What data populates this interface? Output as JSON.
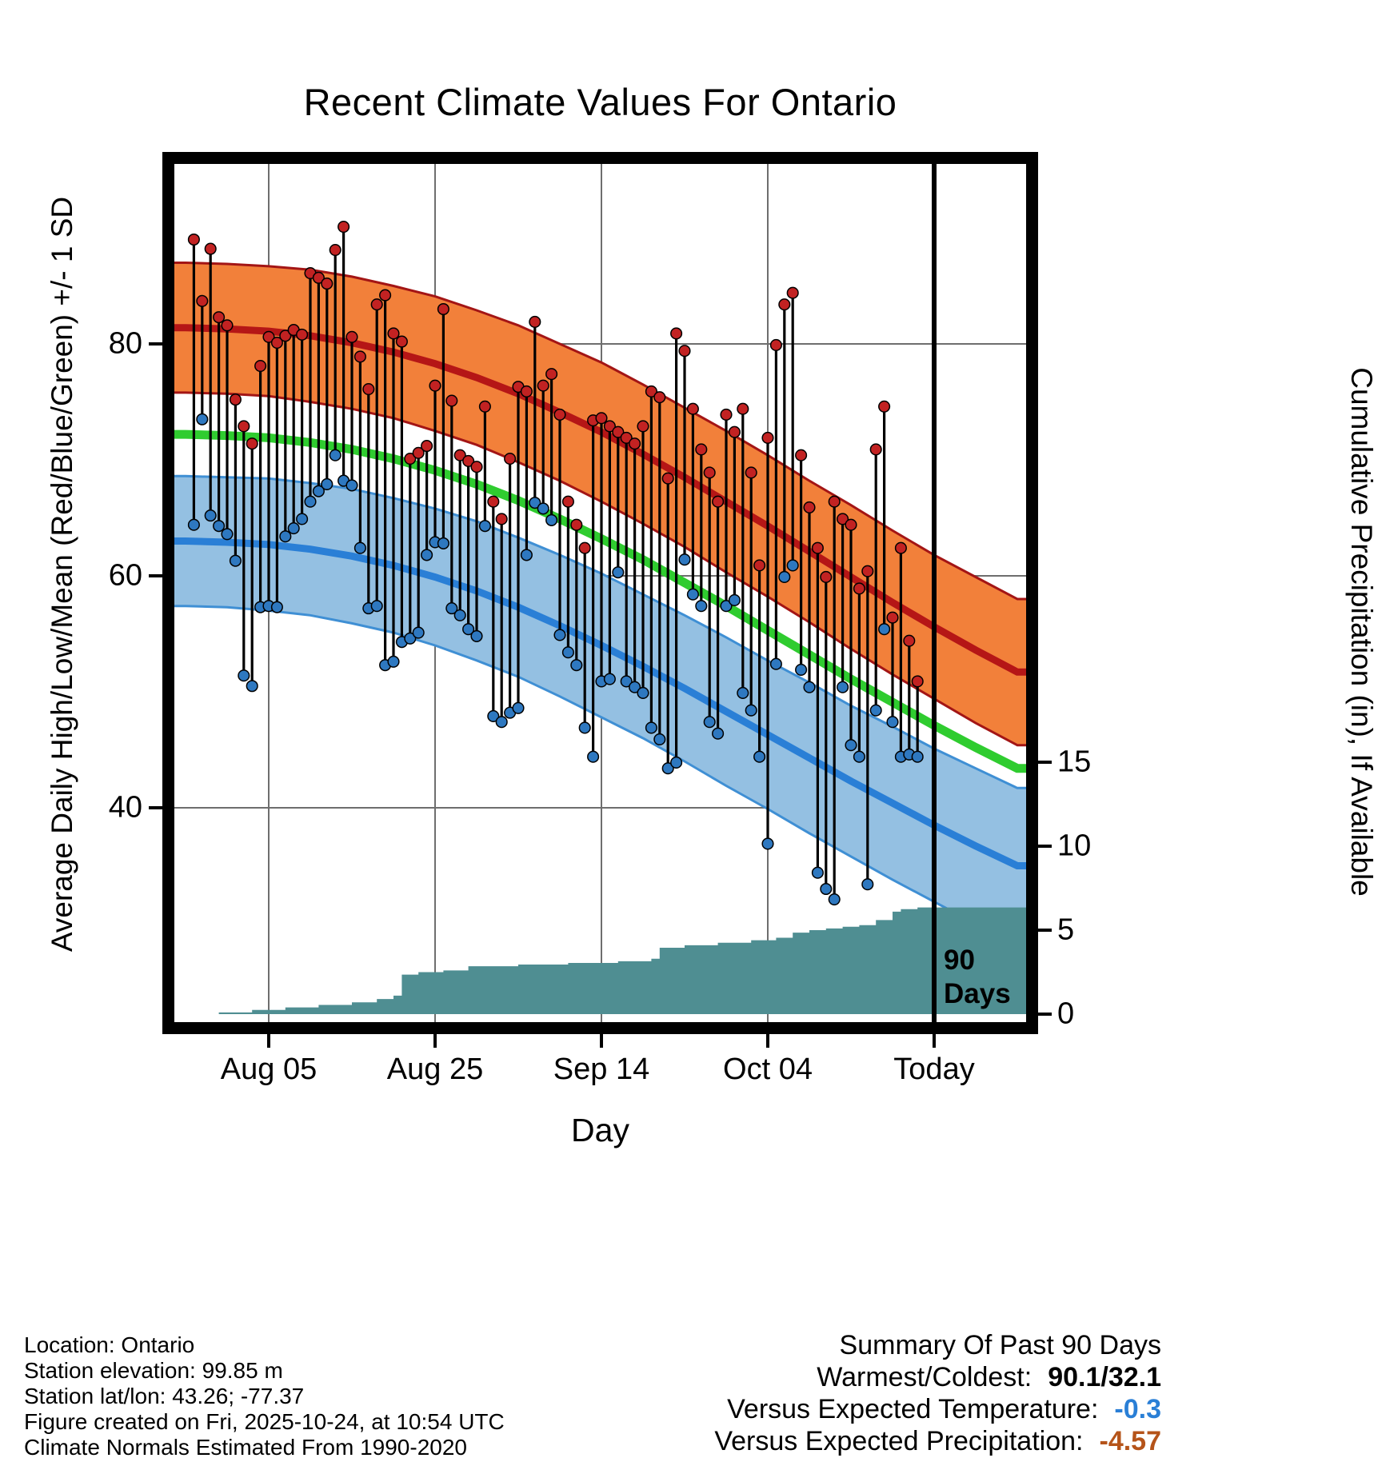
{
  "footer": {
    "lines": [
      "Location: Ontario",
      "Station elevation: 99.85 m",
      "Station lat/lon: 43.26; -77.37",
      "Figure created on Fri, 2025-10-24, at 10:54 UTC",
      "Climate Normals Estimated From 1990-2020"
    ]
  },
  "summary": {
    "title": "Summary Of Past 90 Days",
    "rows": [
      {
        "label": "Warmest/Coldest:",
        "value": "90.1/32.1",
        "color": "#000000"
      },
      {
        "label": "Versus Expected Temperature:",
        "value": "-0.3",
        "color": "#2a7fd6"
      },
      {
        "label": "Versus Expected Precipitation:",
        "value": "-4.57",
        "color": "#b5541a"
      }
    ]
  },
  "chart_data": {
    "type": "line",
    "title": "Recent Climate Values For Ontario",
    "xlabel": "Day",
    "ylabel_left": "Average Daily High/Low/Mean (Red/Blue/Green) +/- 1 SD",
    "ylabel_right": "Cumulative Precipitation (in), If Available",
    "annotations": {
      "value": "90",
      "unit": "Days"
    },
    "x_axis": {
      "tick_days": [
        10,
        30,
        50,
        70,
        90
      ],
      "tick_labels": [
        "Aug 05",
        "Aug 25",
        "Sep 14",
        "Oct 04",
        "Today"
      ],
      "range_days": [
        0,
        101
      ]
    },
    "y_left": {
      "ticks": [
        80,
        60,
        40
      ],
      "range": [
        21.5,
        95.5
      ],
      "units": "deg F"
    },
    "y_right": {
      "ticks": [
        15,
        10,
        5,
        0
      ],
      "range": [
        0,
        51
      ],
      "units": "in"
    },
    "today_day": 90,
    "normals": {
      "days": [
        0,
        5,
        10,
        15,
        20,
        25,
        30,
        35,
        40,
        45,
        50,
        55,
        60,
        65,
        70,
        75,
        80,
        85,
        90,
        95,
        100
      ],
      "high_mean": [
        81.4,
        81.3,
        81.1,
        80.7,
        80.1,
        79.3,
        78.3,
        77.1,
        75.7,
        74.1,
        72.4,
        70.5,
        68.5,
        66.4,
        64.3,
        62.1,
        59.9,
        57.7,
        55.6,
        53.6,
        51.7
      ],
      "high_sd": [
        5.6,
        5.6,
        5.6,
        5.7,
        5.7,
        5.7,
        5.8,
        5.8,
        5.9,
        5.9,
        6.0,
        6.0,
        6.0,
        6.1,
        6.1,
        6.1,
        6.2,
        6.2,
        6.2,
        6.3,
        6.3
      ],
      "low_mean": [
        63.0,
        62.9,
        62.7,
        62.3,
        61.7,
        60.9,
        59.9,
        58.7,
        57.3,
        55.7,
        54.0,
        52.2,
        50.3,
        48.3,
        46.3,
        44.3,
        42.3,
        40.4,
        38.5,
        36.7,
        35.0
      ],
      "low_sd": [
        5.6,
        5.6,
        5.7,
        5.7,
        5.8,
        5.8,
        5.9,
        6.0,
        6.0,
        6.1,
        6.2,
        6.2,
        6.3,
        6.4,
        6.4,
        6.5,
        6.5,
        6.6,
        6.6,
        6.7,
        6.7
      ],
      "mean": [
        72.2,
        72.1,
        71.9,
        71.5,
        70.9,
        70.1,
        69.1,
        67.9,
        66.5,
        64.9,
        63.2,
        61.4,
        59.4,
        57.4,
        55.3,
        53.2,
        51.1,
        49.1,
        47.1,
        45.2,
        43.4
      ]
    },
    "daily": {
      "days_start": 1,
      "high": [
        89.0,
        83.7,
        88.2,
        82.3,
        81.6,
        75.2,
        72.9,
        71.4,
        78.1,
        80.6,
        80.1,
        80.7,
        81.2,
        80.8,
        86.1,
        85.7,
        85.2,
        88.1,
        90.1,
        80.6,
        78.9,
        76.1,
        83.4,
        84.2,
        80.9,
        80.2,
        70.1,
        70.6,
        71.2,
        76.4,
        83.0,
        75.1,
        70.4,
        69.9,
        69.4,
        74.6,
        66.4,
        64.9,
        70.1,
        76.3,
        75.9,
        81.9,
        76.4,
        77.4,
        73.9,
        66.4,
        64.4,
        62.4,
        73.4,
        73.6,
        72.9,
        72.4,
        71.9,
        71.4,
        72.9,
        75.9,
        75.4,
        68.4,
        80.9,
        79.4,
        74.4,
        70.9,
        68.9,
        66.4,
        73.9,
        72.4,
        74.4,
        68.9,
        60.9,
        71.9,
        79.9,
        83.4,
        84.4,
        70.4,
        65.9,
        62.4,
        59.9,
        66.4,
        64.9,
        64.4,
        58.9,
        60.4,
        70.9,
        74.6,
        56.4,
        62.4,
        54.4,
        50.9
      ],
      "low": [
        64.4,
        73.5,
        65.2,
        64.3,
        63.6,
        61.3,
        51.4,
        50.5,
        57.3,
        57.4,
        57.3,
        63.4,
        64.1,
        64.9,
        66.4,
        67.3,
        67.9,
        70.4,
        68.2,
        67.8,
        62.4,
        57.2,
        57.4,
        52.3,
        52.6,
        54.3,
        54.6,
        55.1,
        61.8,
        62.9,
        62.8,
        57.2,
        56.6,
        55.4,
        54.8,
        64.3,
        47.9,
        47.4,
        48.2,
        48.6,
        61.8,
        66.3,
        65.8,
        64.8,
        54.9,
        53.4,
        52.3,
        46.9,
        44.4,
        50.9,
        51.1,
        60.3,
        50.9,
        50.4,
        49.9,
        46.9,
        45.9,
        43.4,
        43.9,
        61.4,
        58.4,
        57.4,
        47.4,
        46.4,
        57.4,
        57.9,
        49.9,
        48.4,
        44.4,
        36.9,
        52.4,
        59.9,
        60.9,
        51.9,
        50.4,
        34.4,
        33.0,
        32.1,
        50.4,
        45.4,
        44.4,
        33.4,
        48.4,
        55.4,
        47.4,
        44.4,
        44.6,
        44.4
      ]
    },
    "precipitation": {
      "days": [
        0,
        4,
        8,
        12,
        16,
        20,
        23,
        25,
        26,
        28,
        31,
        34,
        40,
        46,
        52,
        56,
        57,
        60,
        64,
        68,
        71,
        73,
        75,
        77,
        79,
        81,
        83,
        85,
        86,
        88
      ],
      "cumulative": [
        0.0,
        0.1,
        0.25,
        0.4,
        0.55,
        0.7,
        0.9,
        1.1,
        2.35,
        2.5,
        2.6,
        2.85,
        2.95,
        3.05,
        3.15,
        3.3,
        3.95,
        4.1,
        4.25,
        4.4,
        4.55,
        4.85,
        5.0,
        5.1,
        5.2,
        5.3,
        5.6,
        6.1,
        6.25,
        6.35
      ],
      "final_total": 6.35
    },
    "colors": {
      "high_band_fill": "#f2803a",
      "high_band_edge": "#a31515",
      "high_mean_line": "#b51616",
      "low_band_fill": "#94c0e2",
      "low_band_edge": "#3f8fd4",
      "low_mean_line": "#2a7fd6",
      "mean_line": "#2fcc2f",
      "precip_fill": "#4f8e92",
      "daily_stem": "#000000",
      "daily_high_dot": "#c22222",
      "daily_low_dot": "#2e78c0",
      "grid": "#6e6e6e",
      "frame": "#000000"
    }
  }
}
